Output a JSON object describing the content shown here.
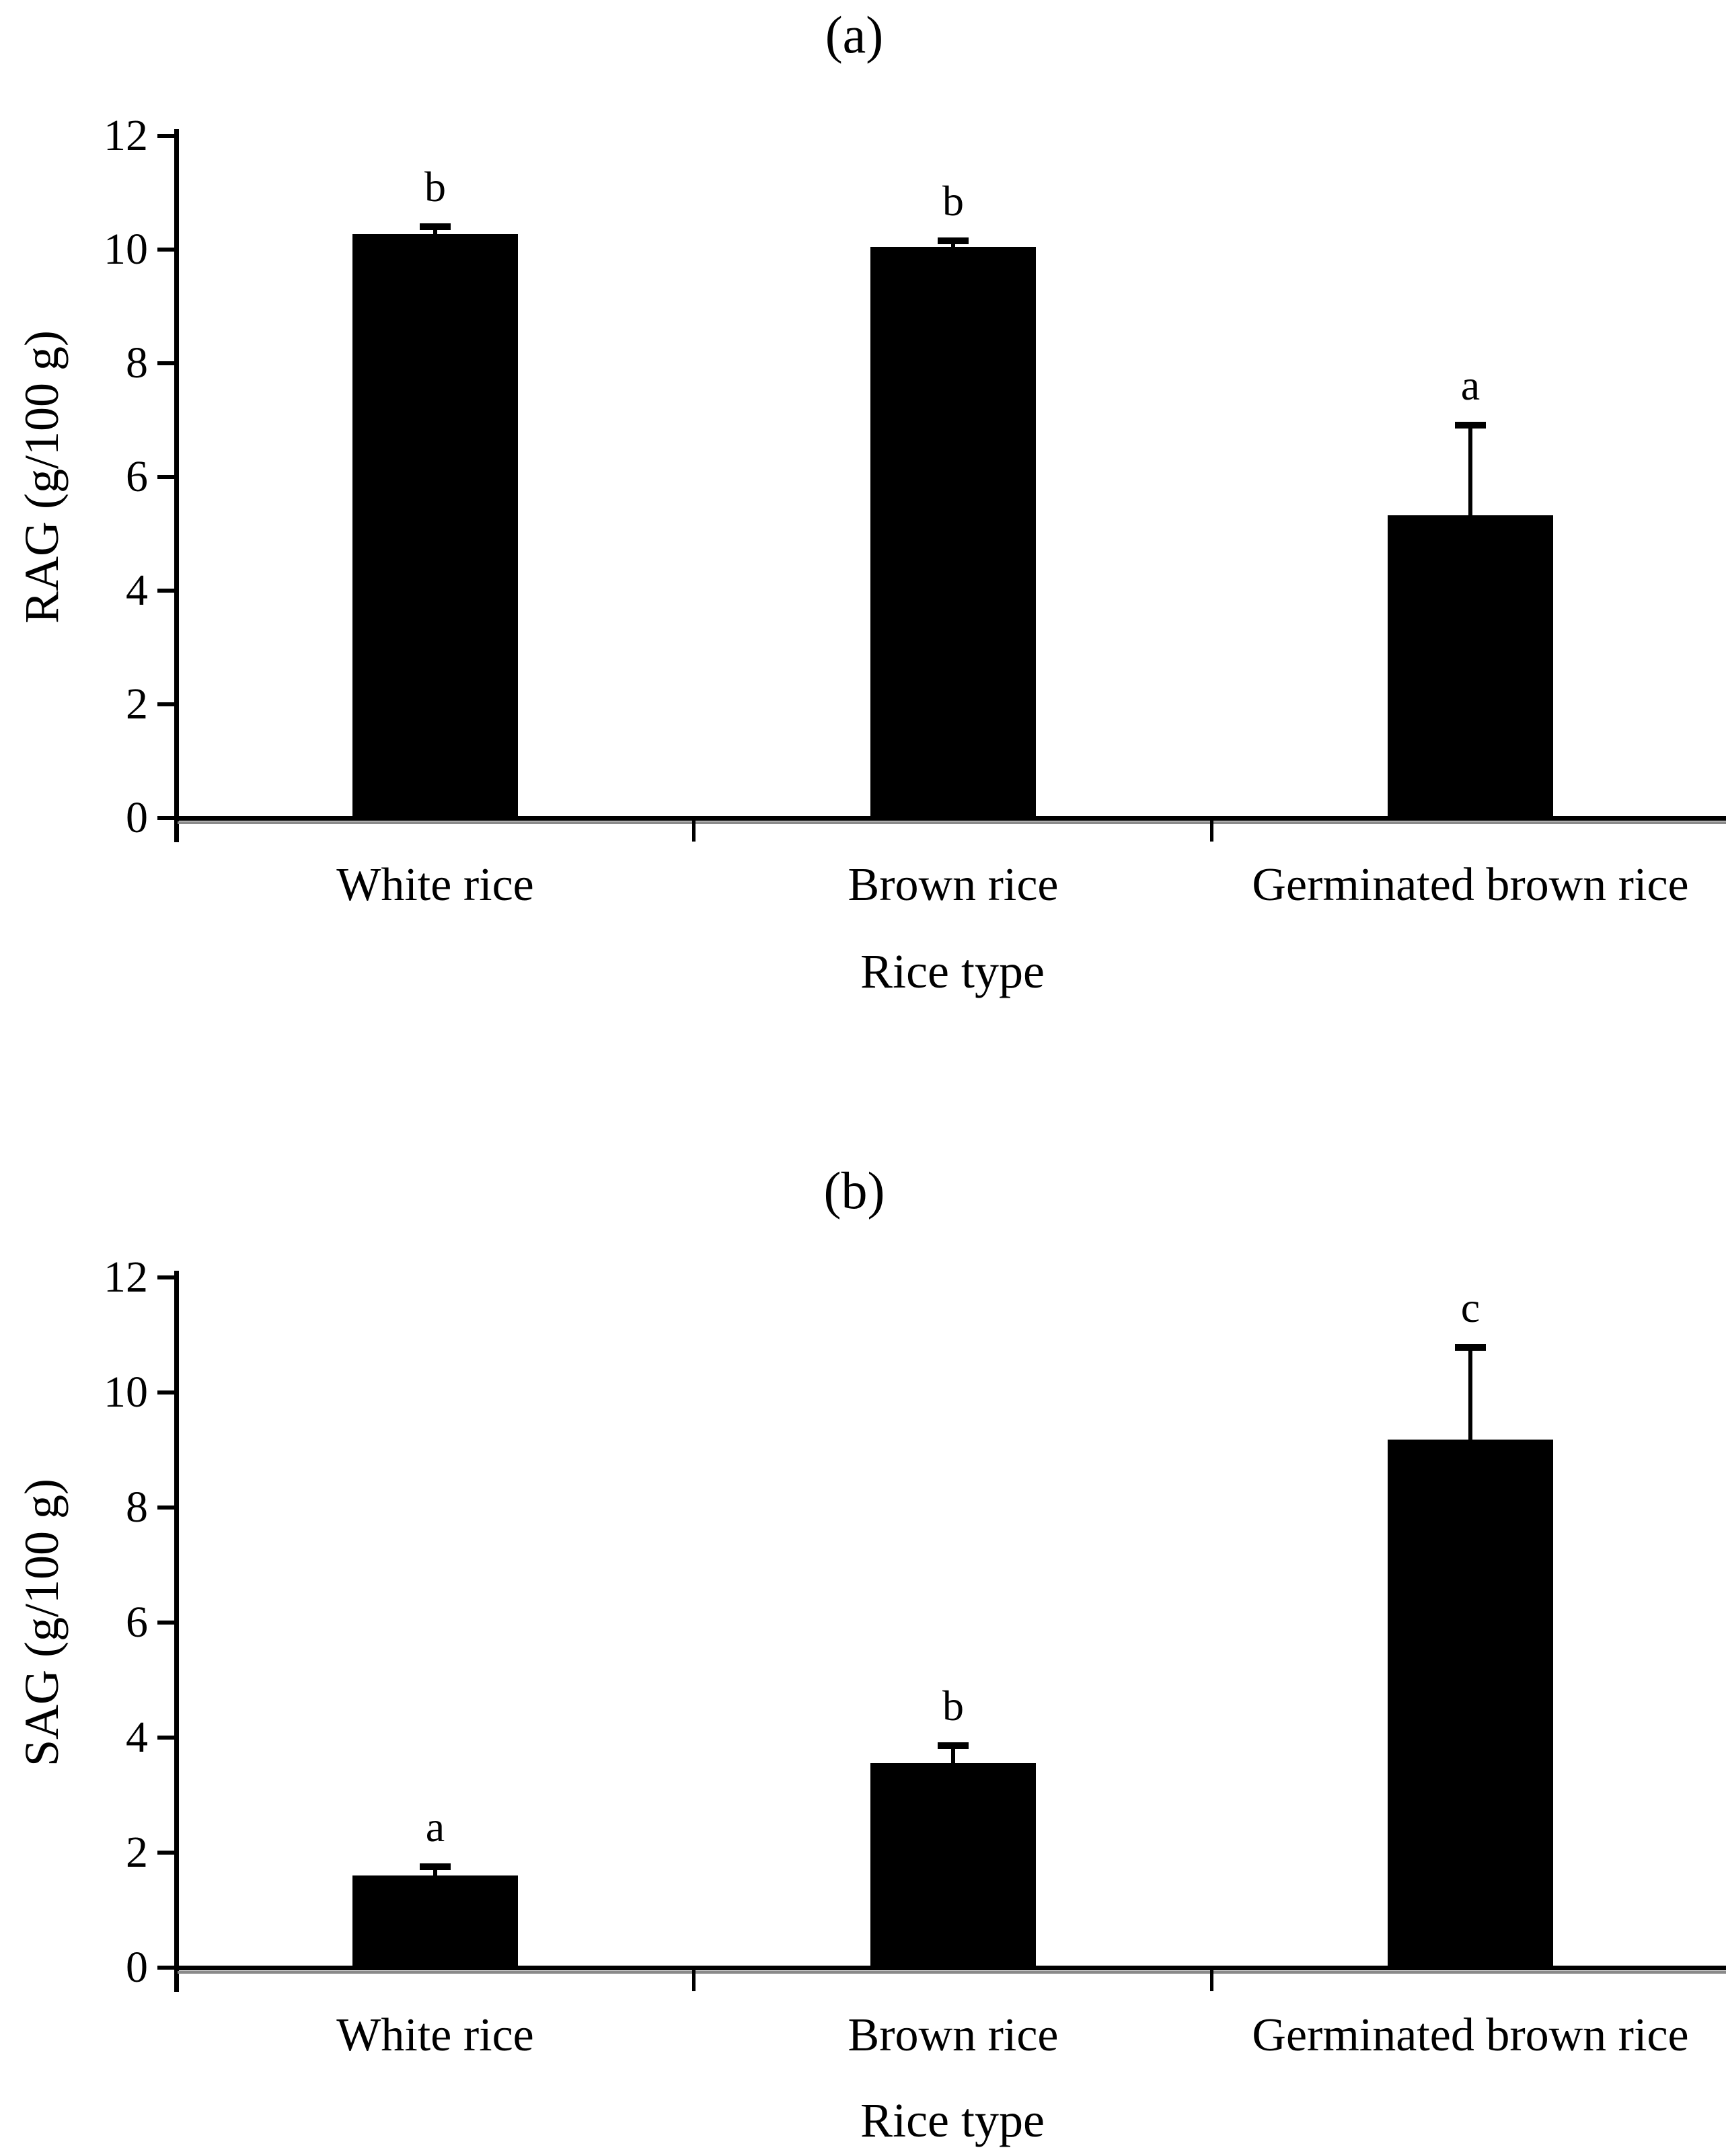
{
  "figure": {
    "background": "#ffffff",
    "bar_color": "#000000",
    "text_color": "#000000"
  },
  "chart_data": [
    {
      "type": "bar",
      "panel_label": "(a)",
      "categories": [
        "White rice",
        "Brown rice",
        "Germinated brown rice"
      ],
      "values": [
        10.27,
        10.05,
        5.33
      ],
      "errors_up": [
        0.13,
        0.1,
        1.58
      ],
      "sig_letters": [
        "b",
        "b",
        "a"
      ],
      "xlabel": "Rice type",
      "ylabel": "RAG (g/100 g)",
      "ylim": [
        0,
        12
      ],
      "yticks": [
        0,
        2,
        4,
        6,
        8,
        10,
        12
      ],
      "grid": false,
      "legend": null,
      "bar_color": "#000000"
    },
    {
      "type": "bar",
      "panel_label": "(b)",
      "categories": [
        "White rice",
        "Brown rice",
        "Germinated brown rice"
      ],
      "values": [
        1.6,
        3.56,
        9.18
      ],
      "errors_up": [
        0.16,
        0.3,
        1.6
      ],
      "sig_letters": [
        "a",
        "b",
        "c"
      ],
      "xlabel": "Rice type",
      "ylabel": "SAG (g/100 g)",
      "ylim": [
        0,
        12
      ],
      "yticks": [
        0,
        2,
        4,
        6,
        8,
        10,
        12
      ],
      "grid": false,
      "legend": null,
      "bar_color": "#000000"
    }
  ]
}
